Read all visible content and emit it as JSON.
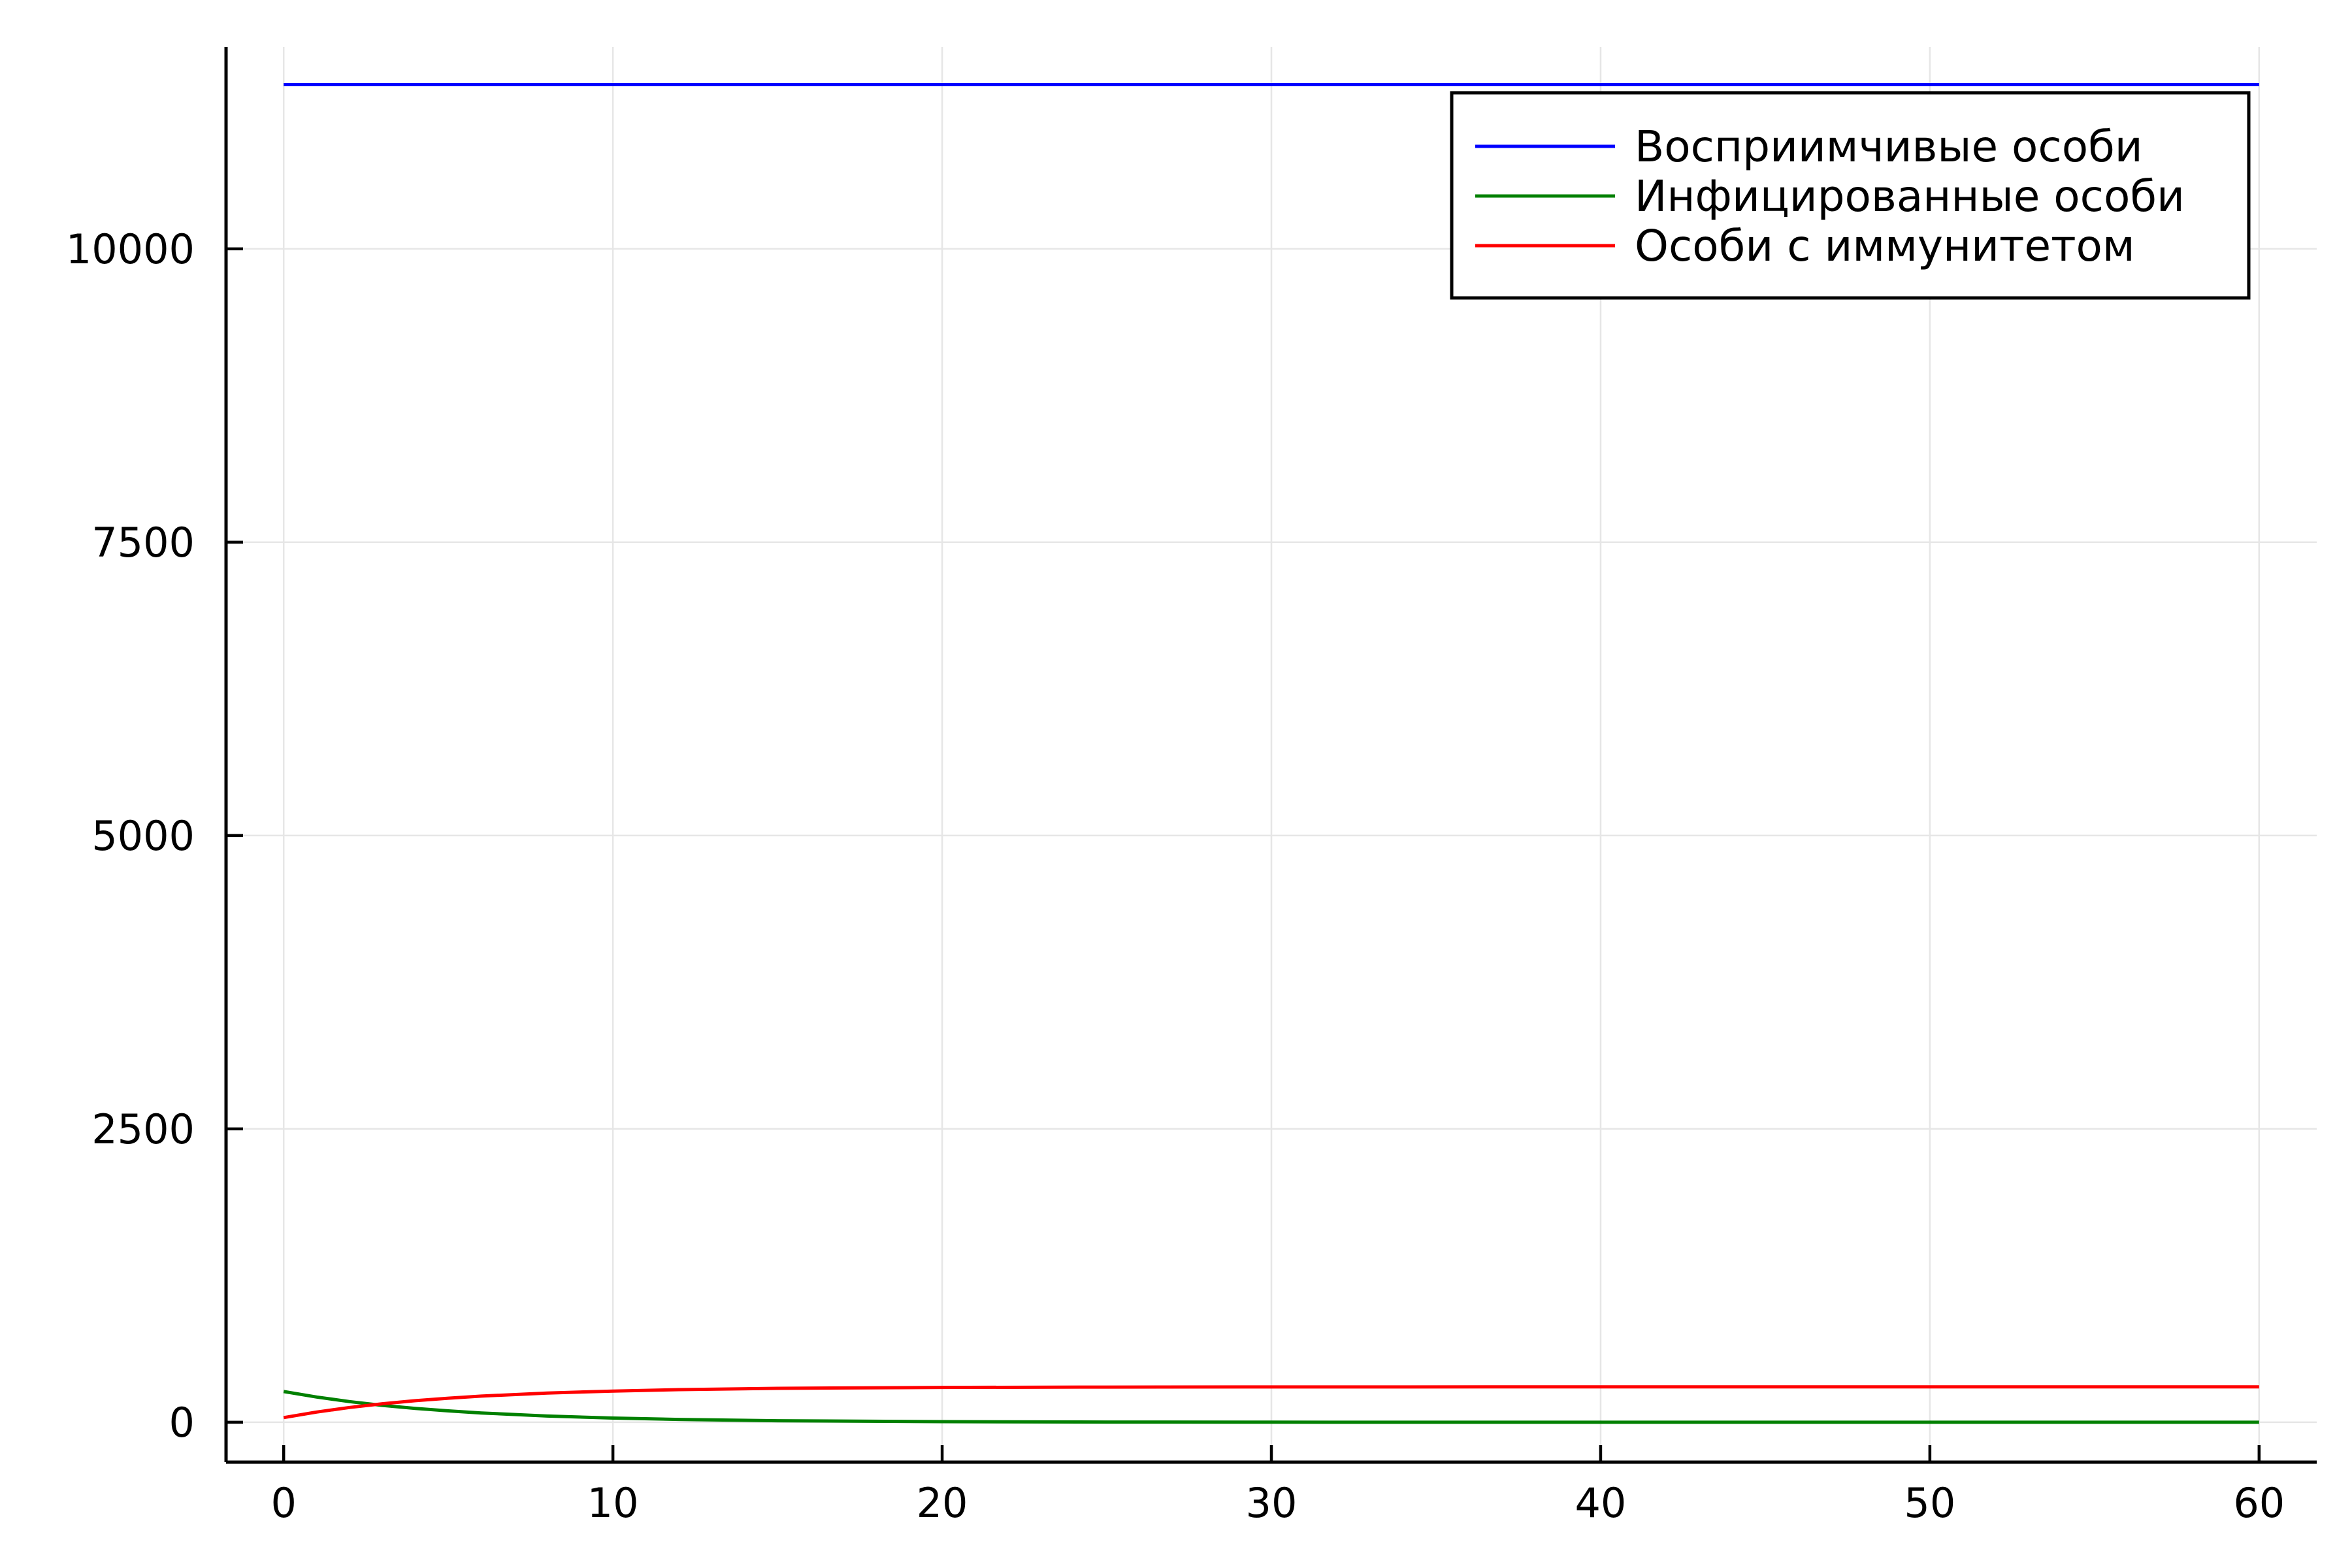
{
  "chart_data": {
    "type": "line",
    "title": "",
    "xlabel": "",
    "ylabel": "",
    "xlim": [
      -1.75,
      61.75
    ],
    "ylim": [
      -340,
      11720
    ],
    "xticks": [
      0,
      10,
      20,
      30,
      40,
      50,
      60
    ],
    "yticks": [
      0,
      2500,
      5000,
      7500,
      10000
    ],
    "grid": true,
    "legend_position": "top-right",
    "series": [
      {
        "name": "Восприимчивые особи",
        "color": "#0000ff",
        "x": [
          0,
          2,
          4,
          6,
          8,
          10,
          12,
          15,
          20,
          25,
          30,
          40,
          50,
          60
        ],
        "values": [
          11400,
          11400,
          11400,
          11400,
          11400,
          11400,
          11400,
          11400,
          11400,
          11400,
          11400,
          11400,
          11400,
          11400
        ]
      },
      {
        "name": "Инфицированные особи",
        "color": "#008000",
        "x": [
          0,
          1,
          2,
          3,
          4,
          5,
          6,
          8,
          10,
          12,
          15,
          20,
          25,
          30,
          40,
          50,
          60
        ],
        "values": [
          262,
          215,
          176,
          144,
          118,
          97,
          79,
          53,
          36,
          24,
          13,
          5,
          2,
          1,
          0,
          0,
          0
        ]
      },
      {
        "name": "Особи с иммунитетом",
        "color": "#ff0000",
        "x": [
          0,
          1,
          2,
          3,
          4,
          5,
          6,
          8,
          10,
          12,
          15,
          20,
          25,
          30,
          40,
          50,
          60
        ],
        "values": [
          40,
          87,
          126,
          158,
          184,
          205,
          223,
          249,
          266,
          278,
          289,
          297,
          300,
          301,
          302,
          302,
          302
        ]
      }
    ]
  }
}
